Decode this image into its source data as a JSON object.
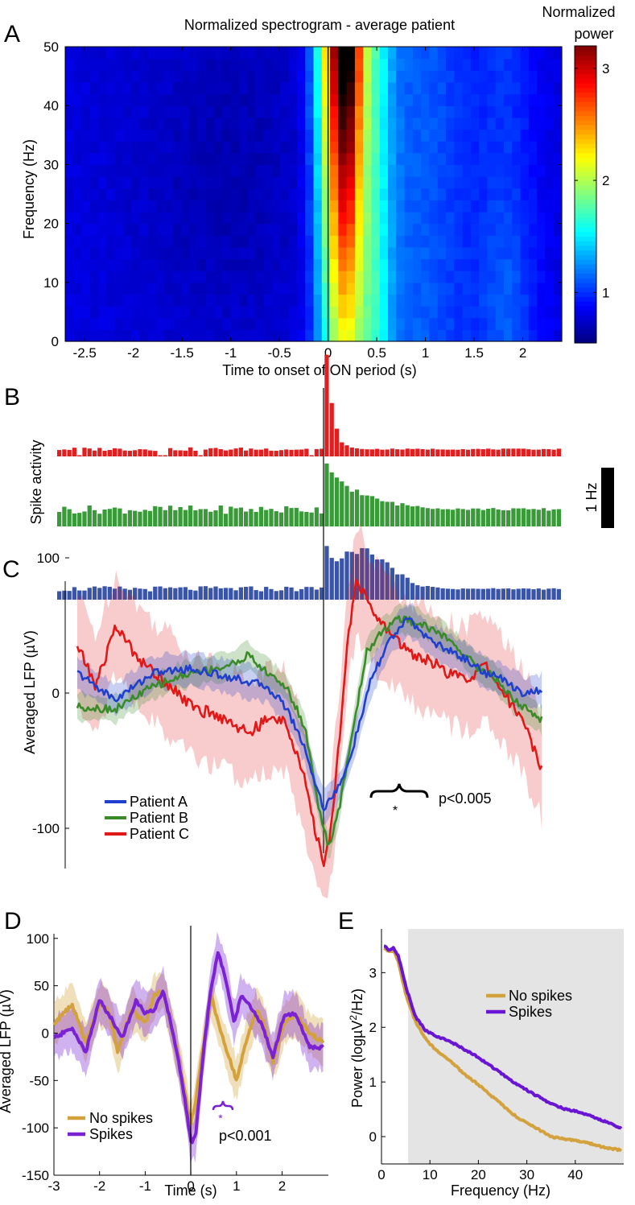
{
  "figure": {
    "panel_letters": [
      "A",
      "B",
      "C",
      "D",
      "E"
    ]
  },
  "chart_data": [
    {
      "panel": "A",
      "type": "heatmap",
      "title": "Normalized spectrogram - average patient",
      "xlabel": "Time to onset of ON period (s)",
      "ylabel": "Frequency (Hz)",
      "xlim": [
        -2.7,
        2.4
      ],
      "ylim": [
        0,
        50
      ],
      "xticks": [
        -2.5,
        -2,
        -1.5,
        -1,
        -0.5,
        0,
        0.5,
        1,
        1.5,
        2
      ],
      "xtick_labels": [
        "-2.5",
        "-2",
        "-1.5",
        "-1",
        "-0.5",
        "0",
        "0.5",
        "1",
        "1.5",
        "2"
      ],
      "yticks": [
        0,
        10,
        20,
        30,
        40,
        50
      ],
      "colorbar": {
        "title_lines": [
          "Normalized",
          "power"
        ],
        "ticks": [
          1,
          2,
          3
        ],
        "range": [
          0.55,
          3.2
        ],
        "colormap": "jet"
      },
      "description": "Power ~0.8 before onset; strong broadband increase 0 to 0.3 s (peak ~3.1 at 40-50 Hz, ~0.2 s), moderate elevation 0.5-2.2 s.",
      "events": [
        {
          "label": "onset",
          "x": 0
        }
      ]
    },
    {
      "panel": "B",
      "type": "bar",
      "ylabel": "Spike activity",
      "scale_bar_label": "1 Hz",
      "xlim": [
        -2.7,
        2.4
      ],
      "series": [
        {
          "color": "#e02020",
          "baseline_rate": 0.12,
          "peak_rate": 1.9,
          "decay": 0.06
        },
        {
          "color": "#3a9a3a",
          "baseline_rate": 0.28,
          "peak_rate": 1.0,
          "decay": 0.35
        },
        {
          "color": "#3a54a8",
          "baseline_rate": 0.18,
          "peak_rate": 0.82,
          "decay": 0.4
        }
      ]
    },
    {
      "panel": "C",
      "type": "line",
      "ylabel": "Averaged LFP (µV)",
      "yticks": [
        -100,
        0,
        100
      ],
      "ylim": [
        -145,
        110
      ],
      "xlim": [
        -2.7,
        2.4
      ],
      "series": [
        {
          "name": "Patient A",
          "color": "#1f3fcc",
          "points": [
            [
              -2.6,
              15
            ],
            [
              -2.2,
              -5
            ],
            [
              -1.8,
              15
            ],
            [
              -1.4,
              18
            ],
            [
              -1.0,
              12
            ],
            [
              -0.6,
              5
            ],
            [
              -0.4,
              -10
            ],
            [
              -0.2,
              -40
            ],
            [
              -0.1,
              -65
            ],
            [
              0.0,
              -85
            ],
            [
              0.1,
              -75
            ],
            [
              0.2,
              -65
            ],
            [
              0.35,
              -30
            ],
            [
              0.5,
              10
            ],
            [
              0.7,
              40
            ],
            [
              0.9,
              55
            ],
            [
              1.1,
              40
            ],
            [
              1.3,
              32
            ],
            [
              1.5,
              25
            ],
            [
              1.7,
              15
            ],
            [
              1.9,
              10
            ],
            [
              2.1,
              0
            ],
            [
              2.3,
              2
            ]
          ]
        },
        {
          "name": "Patient B",
          "color": "#3a8a2a",
          "points": [
            [
              -2.6,
              -10
            ],
            [
              -2.2,
              -12
            ],
            [
              -1.8,
              5
            ],
            [
              -1.4,
              15
            ],
            [
              -1.0,
              20
            ],
            [
              -0.8,
              28
            ],
            [
              -0.6,
              15
            ],
            [
              -0.4,
              5
            ],
            [
              -0.2,
              -25
            ],
            [
              -0.05,
              -85
            ],
            [
              0.05,
              -115
            ],
            [
              0.15,
              -90
            ],
            [
              0.3,
              -30
            ],
            [
              0.45,
              30
            ],
            [
              0.6,
              45
            ],
            [
              0.8,
              55
            ],
            [
              1.0,
              52
            ],
            [
              1.2,
              45
            ],
            [
              1.4,
              35
            ],
            [
              1.6,
              20
            ],
            [
              1.8,
              12
            ],
            [
              2.0,
              -5
            ],
            [
              2.2,
              -15
            ],
            [
              2.3,
              -20
            ]
          ]
        },
        {
          "name": "Patient C",
          "color": "#e01818",
          "points": [
            [
              -2.6,
              35
            ],
            [
              -2.4,
              5
            ],
            [
              -2.2,
              50
            ],
            [
              -2.0,
              30
            ],
            [
              -1.8,
              15
            ],
            [
              -1.6,
              5
            ],
            [
              -1.4,
              -10
            ],
            [
              -1.2,
              -15
            ],
            [
              -1.0,
              -20
            ],
            [
              -0.8,
              -30
            ],
            [
              -0.6,
              -20
            ],
            [
              -0.4,
              -20
            ],
            [
              -0.2,
              -65
            ],
            [
              -0.1,
              -100
            ],
            [
              0.0,
              -125
            ],
            [
              0.08,
              -100
            ],
            [
              0.15,
              -45
            ],
            [
              0.25,
              40
            ],
            [
              0.35,
              85
            ],
            [
              0.5,
              60
            ],
            [
              0.7,
              45
            ],
            [
              0.9,
              30
            ],
            [
              1.1,
              25
            ],
            [
              1.3,
              15
            ],
            [
              1.5,
              10
            ],
            [
              1.7,
              20
            ],
            [
              1.9,
              0
            ],
            [
              2.1,
              -20
            ],
            [
              2.3,
              -55
            ]
          ]
        }
      ],
      "annotation": {
        "symbol": "*",
        "text": "p<0.005",
        "x_range": [
          0.45,
          0.95
        ]
      },
      "events": [
        {
          "label": "onset",
          "x": 0
        }
      ]
    },
    {
      "panel": "D",
      "type": "line",
      "xlabel": "Time (s)",
      "ylabel": "Averaged LFP (µV)",
      "xticks": [
        -3,
        -2,
        -1,
        0,
        1,
        2
      ],
      "yticks": [
        -150,
        -100,
        -50,
        0,
        50,
        100
      ],
      "xlim": [
        -3,
        3
      ],
      "ylim": [
        -150,
        110
      ],
      "series": [
        {
          "name": "No spikes",
          "color": "#d4a23c",
          "points": [
            [
              -3.0,
              10
            ],
            [
              -2.6,
              30
            ],
            [
              -2.3,
              -10
            ],
            [
              -2.0,
              30
            ],
            [
              -1.8,
              25
            ],
            [
              -1.6,
              -20
            ],
            [
              -1.3,
              25
            ],
            [
              -1.0,
              10
            ],
            [
              -0.8,
              40
            ],
            [
              -0.6,
              45
            ],
            [
              -0.3,
              -20
            ],
            [
              -0.1,
              -70
            ],
            [
              0.0,
              -95
            ],
            [
              0.1,
              -75
            ],
            [
              0.25,
              -20
            ],
            [
              0.45,
              40
            ],
            [
              0.6,
              10
            ],
            [
              0.8,
              -20
            ],
            [
              1.0,
              -50
            ],
            [
              1.2,
              -10
            ],
            [
              1.45,
              25
            ],
            [
              1.6,
              10
            ],
            [
              1.8,
              -30
            ],
            [
              2.05,
              10
            ],
            [
              2.3,
              20
            ],
            [
              2.6,
              0
            ],
            [
              2.9,
              -10
            ]
          ]
        },
        {
          "name": "Spikes",
          "color": "#7a22d4",
          "points": [
            [
              -3.0,
              -5
            ],
            [
              -2.6,
              5
            ],
            [
              -2.3,
              -20
            ],
            [
              -2.0,
              35
            ],
            [
              -1.8,
              20
            ],
            [
              -1.5,
              -5
            ],
            [
              -1.2,
              35
            ],
            [
              -1.0,
              20
            ],
            [
              -0.8,
              25
            ],
            [
              -0.6,
              45
            ],
            [
              -0.3,
              -20
            ],
            [
              -0.1,
              -80
            ],
            [
              0.0,
              -115
            ],
            [
              0.1,
              -110
            ],
            [
              0.3,
              -10
            ],
            [
              0.45,
              50
            ],
            [
              0.6,
              85
            ],
            [
              0.75,
              60
            ],
            [
              0.95,
              10
            ],
            [
              1.1,
              40
            ],
            [
              1.35,
              25
            ],
            [
              1.55,
              10
            ],
            [
              1.8,
              -25
            ],
            [
              2.05,
              20
            ],
            [
              2.3,
              20
            ],
            [
              2.6,
              -15
            ],
            [
              2.9,
              -15
            ]
          ]
        }
      ],
      "annotation": {
        "symbol": "*",
        "text": "p<0.001",
        "x_range": [
          0.5,
          0.7
        ]
      },
      "events": [
        {
          "label": "onset",
          "x": 0
        }
      ]
    },
    {
      "panel": "E",
      "type": "line",
      "xlabel": "Frequency (Hz)",
      "ylabel": "Power (logµV²/Hz)",
      "ylabel_parts": [
        "Power (logµV",
        "2",
        "/Hz)"
      ],
      "xticks": [
        0,
        10,
        20,
        30,
        40
      ],
      "yticks": [
        0,
        1,
        2,
        3
      ],
      "xlim": [
        0,
        50
      ],
      "ylim": [
        -0.5,
        3.8
      ],
      "shaded_x": [
        5.5,
        50
      ],
      "series": [
        {
          "name": "No spikes",
          "color": "#d4a23c",
          "points": [
            [
              0.5,
              3.45
            ],
            [
              1.5,
              3.38
            ],
            [
              2.5,
              3.4
            ],
            [
              3.5,
              3.2
            ],
            [
              5,
              2.6
            ],
            [
              7,
              2.1
            ],
            [
              9,
              1.8
            ],
            [
              11,
              1.6
            ],
            [
              14,
              1.4
            ],
            [
              17,
              1.15
            ],
            [
              20,
              0.95
            ],
            [
              24,
              0.65
            ],
            [
              28,
              0.35
            ],
            [
              32,
              0.15
            ],
            [
              35,
              0.0
            ],
            [
              38,
              -0.05
            ],
            [
              42,
              -0.1
            ],
            [
              46,
              -0.2
            ],
            [
              49.5,
              -0.25
            ]
          ]
        },
        {
          "name": "Spikes",
          "color": "#6a14d4",
          "points": [
            [
              0.5,
              3.5
            ],
            [
              1.5,
              3.42
            ],
            [
              2.5,
              3.45
            ],
            [
              3.5,
              3.3
            ],
            [
              5,
              2.75
            ],
            [
              7,
              2.2
            ],
            [
              9,
              1.95
            ],
            [
              11,
              1.85
            ],
            [
              14,
              1.75
            ],
            [
              17,
              1.6
            ],
            [
              20,
              1.45
            ],
            [
              24,
              1.2
            ],
            [
              28,
              0.95
            ],
            [
              32,
              0.75
            ],
            [
              35,
              0.6
            ],
            [
              38,
              0.5
            ],
            [
              41,
              0.45
            ],
            [
              44,
              0.35
            ],
            [
              47,
              0.25
            ],
            [
              49.5,
              0.15
            ]
          ]
        }
      ]
    }
  ]
}
